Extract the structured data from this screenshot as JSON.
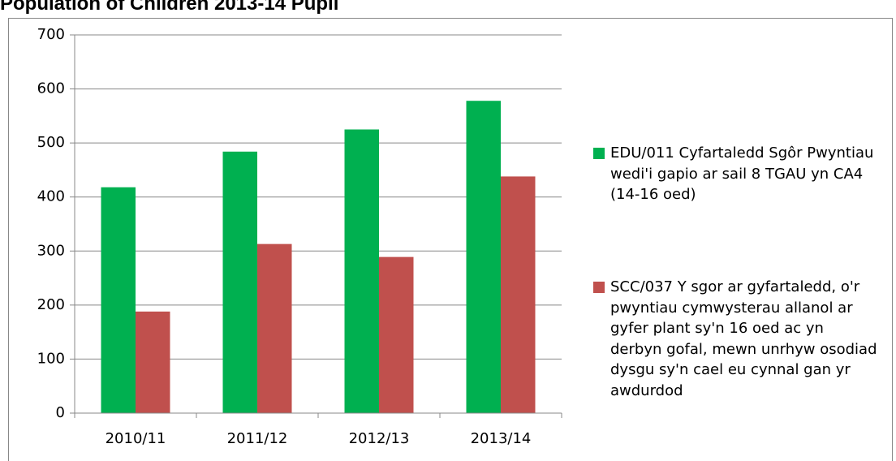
{
  "chart_data": {
    "type": "bar",
    "title": "Population of Children 2013-14 Pupil",
    "categories": [
      "2010/11",
      "2011/12",
      "2012/13",
      "2013/14"
    ],
    "series": [
      {
        "name": "EDU/011 Cyfartaledd Sgôr Pwyntiau wedi'i gapio ar sail 8 TGAU yn CA4 (14-16 oed)",
        "color": "#00b050",
        "values": [
          418,
          484,
          525,
          578
        ]
      },
      {
        "name": "SCC/037 Y sgor ar gyfartaledd, o'r pwyntiau cymwysterau allanol ar gyfer plant sy'n 16 oed ac yn derbyn gofal, mewn unrhyw osodiad dysgu sy'n cael eu cynnal gan yr awdurdod",
        "color": "#c0504d",
        "values": [
          188,
          313,
          289,
          438
        ]
      }
    ],
    "ylim": [
      0,
      700
    ],
    "yticks": [
      0,
      100,
      200,
      300,
      400,
      500,
      600,
      700
    ],
    "grid": true,
    "legend": "right"
  }
}
